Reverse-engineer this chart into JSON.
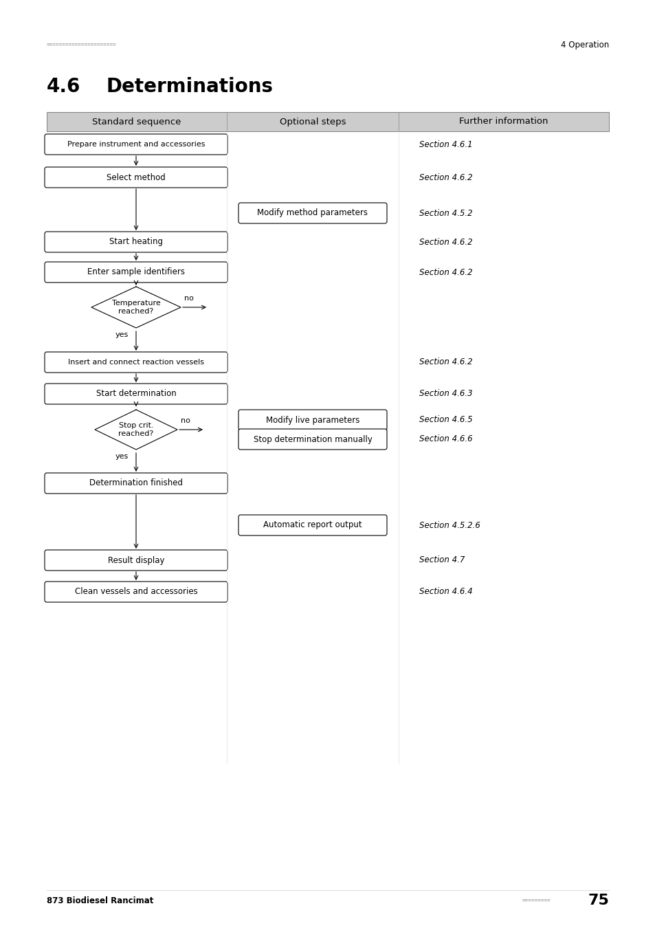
{
  "bg_color": "#ffffff",
  "header_dots_color": "#aaaaaa",
  "header_right": "4 Operation",
  "section_num": "4.6",
  "section_title": "Determinations",
  "table_headers": [
    "Standard sequence",
    "Optional steps",
    "Further information"
  ],
  "table_header_bg": "#cccccc",
  "std_boxes": [
    "Prepare instrument and accessories",
    "Select method",
    "Start heating",
    "Enter sample identifiers",
    "Insert and connect reaction vessels",
    "Start determination",
    "Determination finished",
    "Result display",
    "Clean vessels and accessories"
  ],
  "opt_boxes": [
    "Modify method parameters",
    "Modify live parameters",
    "Stop determination manually",
    "Automatic report output"
  ],
  "refs": {
    "prep": "Section 4.6.1",
    "select": "Section 4.6.2",
    "modify_method": "Section 4.5.2",
    "heat": "Section 4.6.2",
    "enter": "Section 4.6.2",
    "insert": "Section 4.6.2",
    "start_det": "Section 4.6.3",
    "modify_live": "Section 4.6.5",
    "stop_man": "Section 4.6.6",
    "auto_report": "Section 4.5.2.6",
    "result": "Section 4.7",
    "clean": "Section 4.6.4"
  },
  "footer_left": "873 Biodiesel Rancimat",
  "footer_page": "75"
}
